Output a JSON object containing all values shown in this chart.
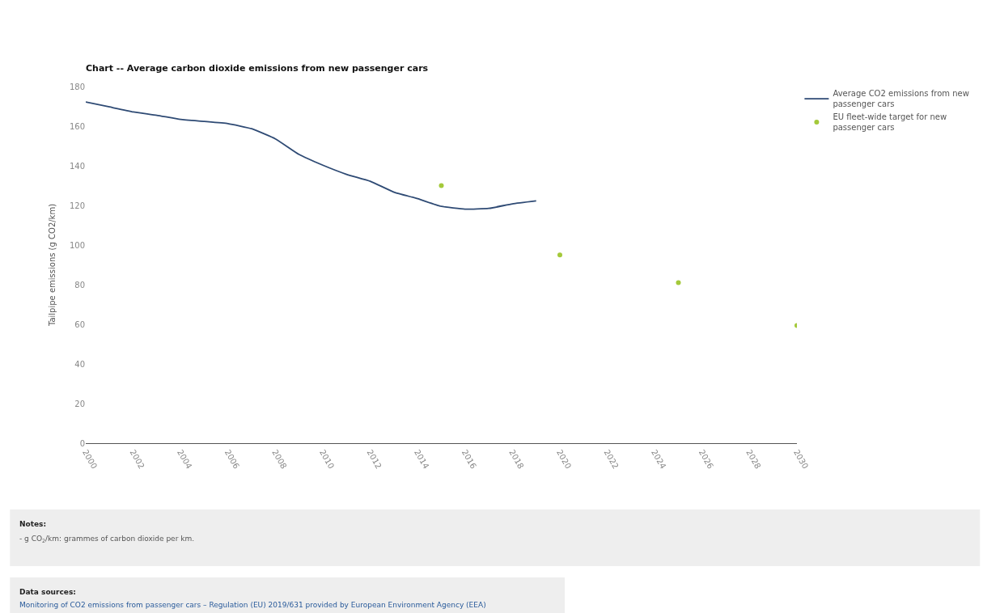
{
  "chart_data": {
    "type": "line",
    "title": "Chart -- Average carbon dioxide emissions from new passenger cars",
    "ylabel": "Tailpipe emissions (g CO2/km)",
    "x": [
      2000,
      2001,
      2002,
      2003,
      2004,
      2005,
      2006,
      2007,
      2008,
      2009,
      2010,
      2011,
      2012,
      2013,
      2014,
      2015,
      2016,
      2017,
      2018,
      2019
    ],
    "series": [
      {
        "name": "Average CO2 emissions from new passenger cars",
        "color": "#2e4a74",
        "marker": "none",
        "values": [
          172.2,
          169.7,
          167.2,
          165.5,
          163.4,
          162.4,
          161.3,
          158.7,
          153.6,
          145.7,
          140.3,
          135.7,
          132.2,
          126.7,
          123.4,
          119.5,
          118.1,
          118.5,
          120.8,
          122.3
        ]
      },
      {
        "name": "EU fleet-wide target for new passenger cars",
        "color": "#a4c93a",
        "type": "scatter",
        "marker": "circle",
        "x": [
          2015,
          2020,
          2025,
          2030
        ],
        "values": [
          130,
          95,
          81,
          59.4
        ]
      }
    ],
    "xlim": [
      2000,
      2030
    ],
    "xticks": [
      2000,
      2002,
      2004,
      2006,
      2008,
      2010,
      2012,
      2014,
      2016,
      2018,
      2020,
      2022,
      2024,
      2026,
      2028,
      2030
    ],
    "ylim": [
      0,
      180
    ],
    "yticks": [
      0,
      20,
      40,
      60,
      80,
      100,
      120,
      140,
      160,
      180
    ],
    "grid": false,
    "legend": "top right",
    "annotations": [
      "Notes:",
      "- g CO$_{2}$/km: grammes of carbon dioxide per km.",
      "Data sources:",
      "Monitoring of CO2 emissions from passenger cars – Regulation (EU) 2019/631 provided by European Environment Agency (EEA)"
    ]
  }
}
